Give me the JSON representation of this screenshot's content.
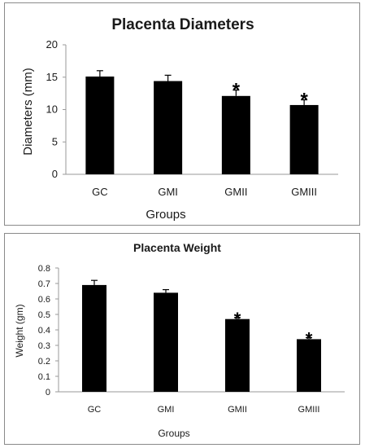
{
  "chart_data": [
    {
      "type": "bar",
      "title": "Placenta Diameters",
      "xlabel": "Groups",
      "ylabel": "Diameters (mm)",
      "categories": [
        "GC",
        "GMI",
        "GMII",
        "GMIII"
      ],
      "values": [
        15.1,
        14.4,
        12.1,
        10.7
      ],
      "errors": [
        0.9,
        0.9,
        0.9,
        0.8
      ],
      "significance": [
        "",
        "",
        "*",
        "*"
      ],
      "ylim": [
        0,
        20
      ],
      "yticks": [
        "0",
        "5",
        "10",
        "15",
        "20"
      ],
      "grid": false,
      "legend": "none",
      "bar_color": "#000000"
    },
    {
      "type": "bar",
      "title": "Placenta Weight",
      "xlabel": "Groups",
      "ylabel": "Weight (gm)",
      "categories": [
        "GC",
        "GMI",
        "GMII",
        "GMIII"
      ],
      "values": [
        0.69,
        0.64,
        0.47,
        0.34
      ],
      "errors": [
        0.03,
        0.02,
        0.01,
        0.01
      ],
      "significance": [
        "",
        "",
        "*",
        "*"
      ],
      "ylim": [
        0,
        0.8
      ],
      "yticks": [
        "0",
        "0.1",
        "0.2",
        "0.3",
        "0.4",
        "0.5",
        "0.6",
        "0.7",
        "0.8"
      ],
      "grid": false,
      "legend": "none",
      "bar_color": "#000000"
    }
  ]
}
